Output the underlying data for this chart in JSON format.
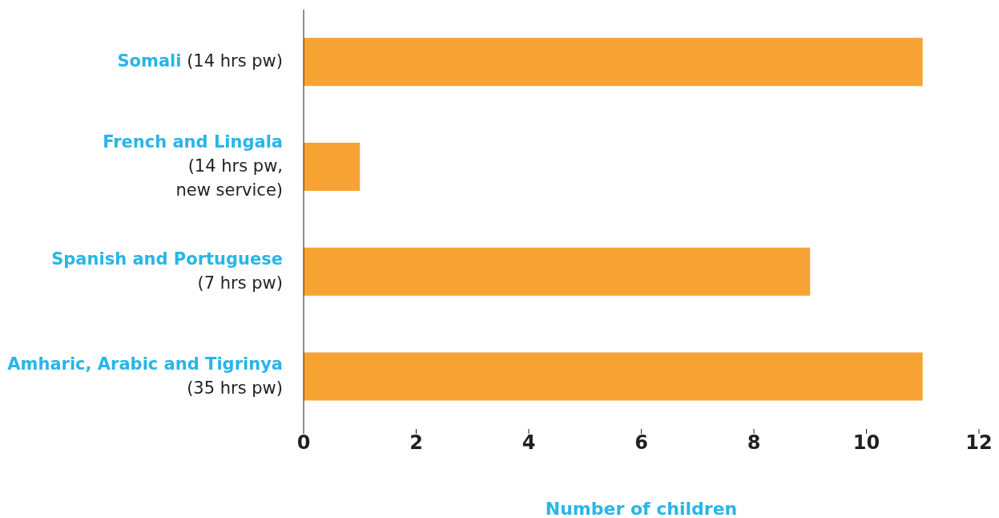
{
  "chart_data": {
    "type": "bar",
    "orientation": "horizontal",
    "categories": [
      "Somali (14 hrs pw)",
      "French and Lingala (14 hrs pw, new service)",
      "Spanish and Portuguese (7 hrs pw)",
      "Amharic, Arabic and Tigrinya (35 hrs pw)"
    ],
    "values": [
      11,
      1,
      9,
      11
    ],
    "color": "#f7a334",
    "xlim": [
      0,
      12
    ],
    "xticks": [
      0,
      2,
      4,
      6,
      8,
      10,
      12
    ],
    "xlabel": "Number of children"
  }
}
